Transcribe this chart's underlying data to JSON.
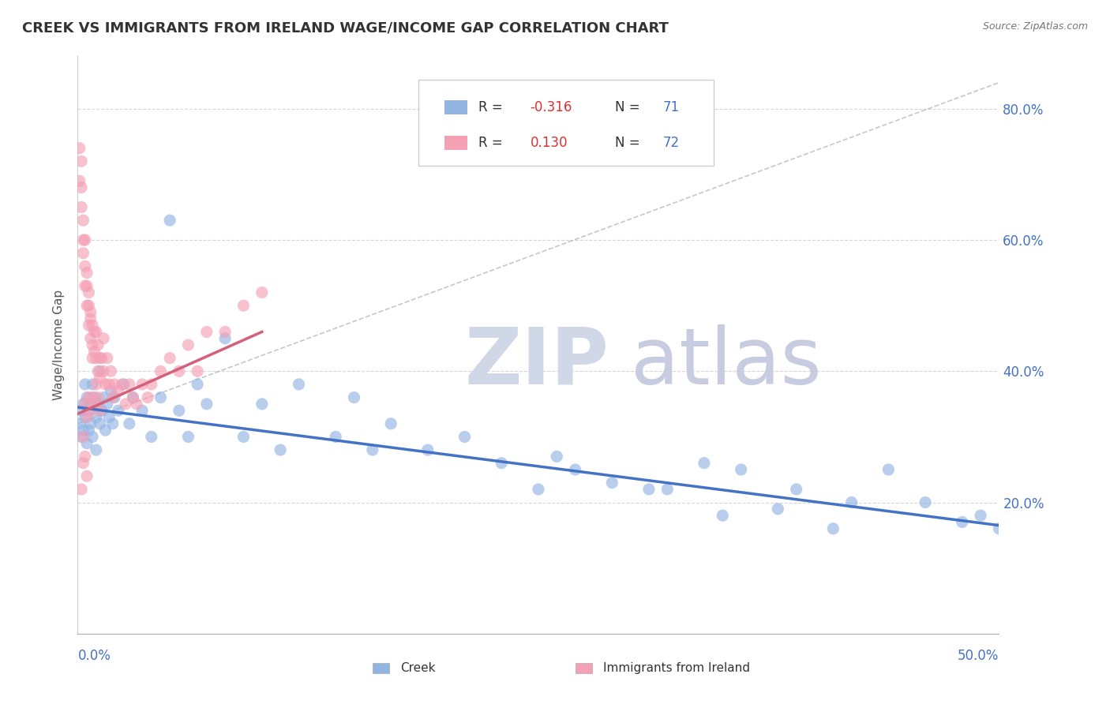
{
  "title": "CREEK VS IMMIGRANTS FROM IRELAND WAGE/INCOME GAP CORRELATION CHART",
  "source": "Source: ZipAtlas.com",
  "ylabel": "Wage/Income Gap",
  "xmin": 0.0,
  "xmax": 0.5,
  "ymin": 0.0,
  "ymax": 0.88,
  "creek_color": "#92b4e3",
  "ireland_color": "#f4a0b5",
  "creek_line_color": "#4472c4",
  "ireland_line_color": "#d4607a",
  "ref_line_color": "#b0b0b0",
  "creek_scatter_x": [
    0.001,
    0.002,
    0.002,
    0.003,
    0.003,
    0.004,
    0.004,
    0.005,
    0.005,
    0.006,
    0.006,
    0.007,
    0.007,
    0.008,
    0.008,
    0.009,
    0.01,
    0.01,
    0.011,
    0.012,
    0.012,
    0.013,
    0.014,
    0.015,
    0.016,
    0.017,
    0.018,
    0.019,
    0.02,
    0.022,
    0.025,
    0.028,
    0.03,
    0.035,
    0.04,
    0.045,
    0.05,
    0.055,
    0.06,
    0.065,
    0.07,
    0.08,
    0.09,
    0.1,
    0.11,
    0.12,
    0.14,
    0.15,
    0.16,
    0.17,
    0.19,
    0.21,
    0.23,
    0.26,
    0.29,
    0.31,
    0.34,
    0.36,
    0.39,
    0.42,
    0.44,
    0.46,
    0.48,
    0.49,
    0.5,
    0.25,
    0.27,
    0.32,
    0.35,
    0.38,
    0.41
  ],
  "creek_scatter_y": [
    0.32,
    0.34,
    0.3,
    0.35,
    0.31,
    0.33,
    0.38,
    0.36,
    0.29,
    0.34,
    0.31,
    0.35,
    0.32,
    0.38,
    0.3,
    0.36,
    0.33,
    0.28,
    0.35,
    0.32,
    0.4,
    0.34,
    0.36,
    0.31,
    0.35,
    0.33,
    0.37,
    0.32,
    0.36,
    0.34,
    0.38,
    0.32,
    0.36,
    0.34,
    0.3,
    0.36,
    0.63,
    0.34,
    0.3,
    0.38,
    0.35,
    0.45,
    0.3,
    0.35,
    0.28,
    0.38,
    0.3,
    0.36,
    0.28,
    0.32,
    0.28,
    0.3,
    0.26,
    0.27,
    0.23,
    0.22,
    0.26,
    0.25,
    0.22,
    0.2,
    0.25,
    0.2,
    0.17,
    0.18,
    0.16,
    0.22,
    0.25,
    0.22,
    0.18,
    0.19,
    0.16
  ],
  "ireland_scatter_x": [
    0.001,
    0.001,
    0.002,
    0.002,
    0.002,
    0.003,
    0.003,
    0.003,
    0.004,
    0.004,
    0.004,
    0.005,
    0.005,
    0.005,
    0.006,
    0.006,
    0.006,
    0.007,
    0.007,
    0.007,
    0.008,
    0.008,
    0.008,
    0.009,
    0.009,
    0.01,
    0.01,
    0.011,
    0.011,
    0.012,
    0.012,
    0.013,
    0.014,
    0.014,
    0.015,
    0.016,
    0.017,
    0.018,
    0.019,
    0.02,
    0.022,
    0.024,
    0.026,
    0.028,
    0.03,
    0.032,
    0.035,
    0.038,
    0.04,
    0.045,
    0.05,
    0.055,
    0.06,
    0.065,
    0.07,
    0.08,
    0.09,
    0.1,
    0.003,
    0.004,
    0.005,
    0.003,
    0.002,
    0.004,
    0.005,
    0.006,
    0.007,
    0.008,
    0.009,
    0.01,
    0.011,
    0.012
  ],
  "ireland_scatter_y": [
    0.69,
    0.74,
    0.72,
    0.65,
    0.68,
    0.6,
    0.58,
    0.63,
    0.56,
    0.53,
    0.6,
    0.55,
    0.5,
    0.53,
    0.5,
    0.47,
    0.52,
    0.49,
    0.45,
    0.48,
    0.44,
    0.47,
    0.42,
    0.46,
    0.43,
    0.42,
    0.46,
    0.4,
    0.44,
    0.42,
    0.39,
    0.42,
    0.4,
    0.45,
    0.38,
    0.42,
    0.38,
    0.4,
    0.36,
    0.38,
    0.37,
    0.38,
    0.35,
    0.38,
    0.36,
    0.35,
    0.38,
    0.36,
    0.38,
    0.4,
    0.42,
    0.4,
    0.44,
    0.4,
    0.46,
    0.46,
    0.5,
    0.52,
    0.3,
    0.27,
    0.24,
    0.26,
    0.22,
    0.35,
    0.33,
    0.36,
    0.34,
    0.36,
    0.35,
    0.38,
    0.36,
    0.34
  ],
  "creek_line_x0": 0.0,
  "creek_line_y0": 0.345,
  "creek_line_x1": 0.5,
  "creek_line_y1": 0.165,
  "ireland_line_x0": 0.0,
  "ireland_line_y0": 0.335,
  "ireland_line_x1": 0.1,
  "ireland_line_y1": 0.46,
  "ref_line_x0": 0.0,
  "ref_line_y0": 0.32,
  "ref_line_x1": 0.5,
  "ref_line_y1": 0.84
}
